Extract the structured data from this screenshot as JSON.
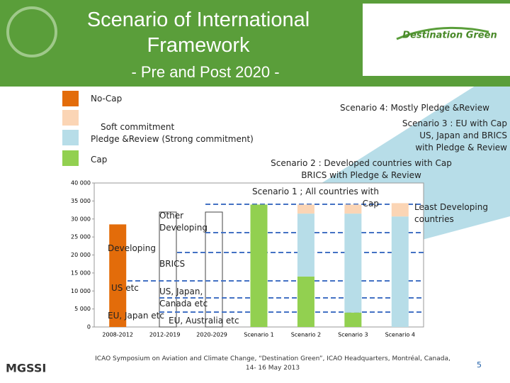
{
  "header": {
    "title": "Scenario of International Framework",
    "subtitle": "- Pre and Post 2020 -",
    "logo": "Destination Green"
  },
  "chart_data": {
    "type": "bar",
    "stacked": true,
    "categories": [
      "2008-2012",
      "2012-2019",
      "2020-2029",
      "Scenario 1",
      "Scenario 2",
      "Scenario 3",
      "Scenario 4"
    ],
    "series": [
      {
        "name": "Cap",
        "color": "#92d050",
        "values": [
          0,
          null,
          null,
          34000,
          14000,
          4000,
          0
        ]
      },
      {
        "name": "Pledge &Review (Strong commitment)",
        "color": "#b7dde8",
        "values": [
          0,
          null,
          null,
          0,
          17500,
          27500,
          30700
        ]
      },
      {
        "name": "Soft commitment",
        "color": "#fbd5b5",
        "values": [
          0,
          null,
          null,
          0,
          2500,
          2500,
          3700
        ]
      },
      {
        "name": "No-Cap",
        "color": "#e36c0a",
        "values": [
          28500,
          null,
          null,
          0,
          0,
          0,
          0
        ]
      }
    ],
    "ylim": [
      0,
      40000
    ],
    "yticks": [
      0,
      {
        "value": 5000,
        "label": "5 000"
      },
      {
        "value": 10000,
        "label": "10 000"
      },
      {
        "value": 15000,
        "label": "15 000"
      },
      {
        "value": 20000,
        "label": "20 000"
      },
      {
        "value": 25000,
        "label": "25 000"
      },
      {
        "value": 30000,
        "label": "30 000"
      },
      {
        "value": 35000,
        "label": "35 000"
      },
      {
        "value": 40000,
        "label": "40 000"
      }
    ],
    "annotations": [
      "Scenario 4: Mostly Pledge &Review",
      "Scenario 3 : EU with Cap\nUS, Japan and BRICS\nwith Pledge & Review",
      "Scenario 2 : Developed countries with Cap\nBRICS with Pledge & Review",
      "Scenario 1 ; All countries with Cap",
      "Least Developing countries",
      "Other\nDeveloping",
      "Developing",
      "BRICS",
      "US etc",
      "US, Japan,\nCanada etc",
      "EU, Japan etc",
      "EU, Australia etc"
    ]
  },
  "footer": {
    "org": "MGSSI",
    "text": "ICAO Symposium on Aviation and Climate Change, “Destination Green”, ICAO Headquarters, Montréal, Canada,\n14- 16 May 2013",
    "page": "5"
  }
}
